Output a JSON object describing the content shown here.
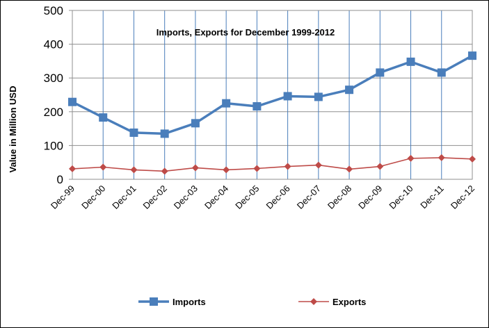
{
  "chart_data": {
    "type": "line",
    "title": "Imports, Exports for December 1999-2012",
    "ylabel": "Value in  Million  USD",
    "xlabel": "",
    "categories": [
      "Dec-99",
      "Dec-00",
      "Dec-01",
      "Dec-02",
      "Dec-03",
      "Dec-04",
      "Dec-05",
      "Dec-06",
      "Dec-07",
      "Dec-08",
      "Dec-09",
      "Dec-10",
      "Dec-11",
      "Dec-12"
    ],
    "ylim": [
      0,
      500
    ],
    "yticks": [
      "0",
      "100",
      "200",
      "300",
      "400",
      "500"
    ],
    "grid": "vertical and horizontal",
    "legend_position": "bottom",
    "series": [
      {
        "name": "Imports",
        "color": "#4A7EBB",
        "marker": "square",
        "values": [
          229,
          183,
          138,
          135,
          166,
          225,
          216,
          246,
          244,
          265,
          316,
          348,
          316,
          366
        ]
      },
      {
        "name": "Exports",
        "color": "#BE4B48",
        "marker": "diamond",
        "values": [
          31,
          36,
          28,
          24,
          34,
          28,
          32,
          38,
          42,
          30,
          38,
          62,
          64,
          60
        ]
      }
    ]
  }
}
